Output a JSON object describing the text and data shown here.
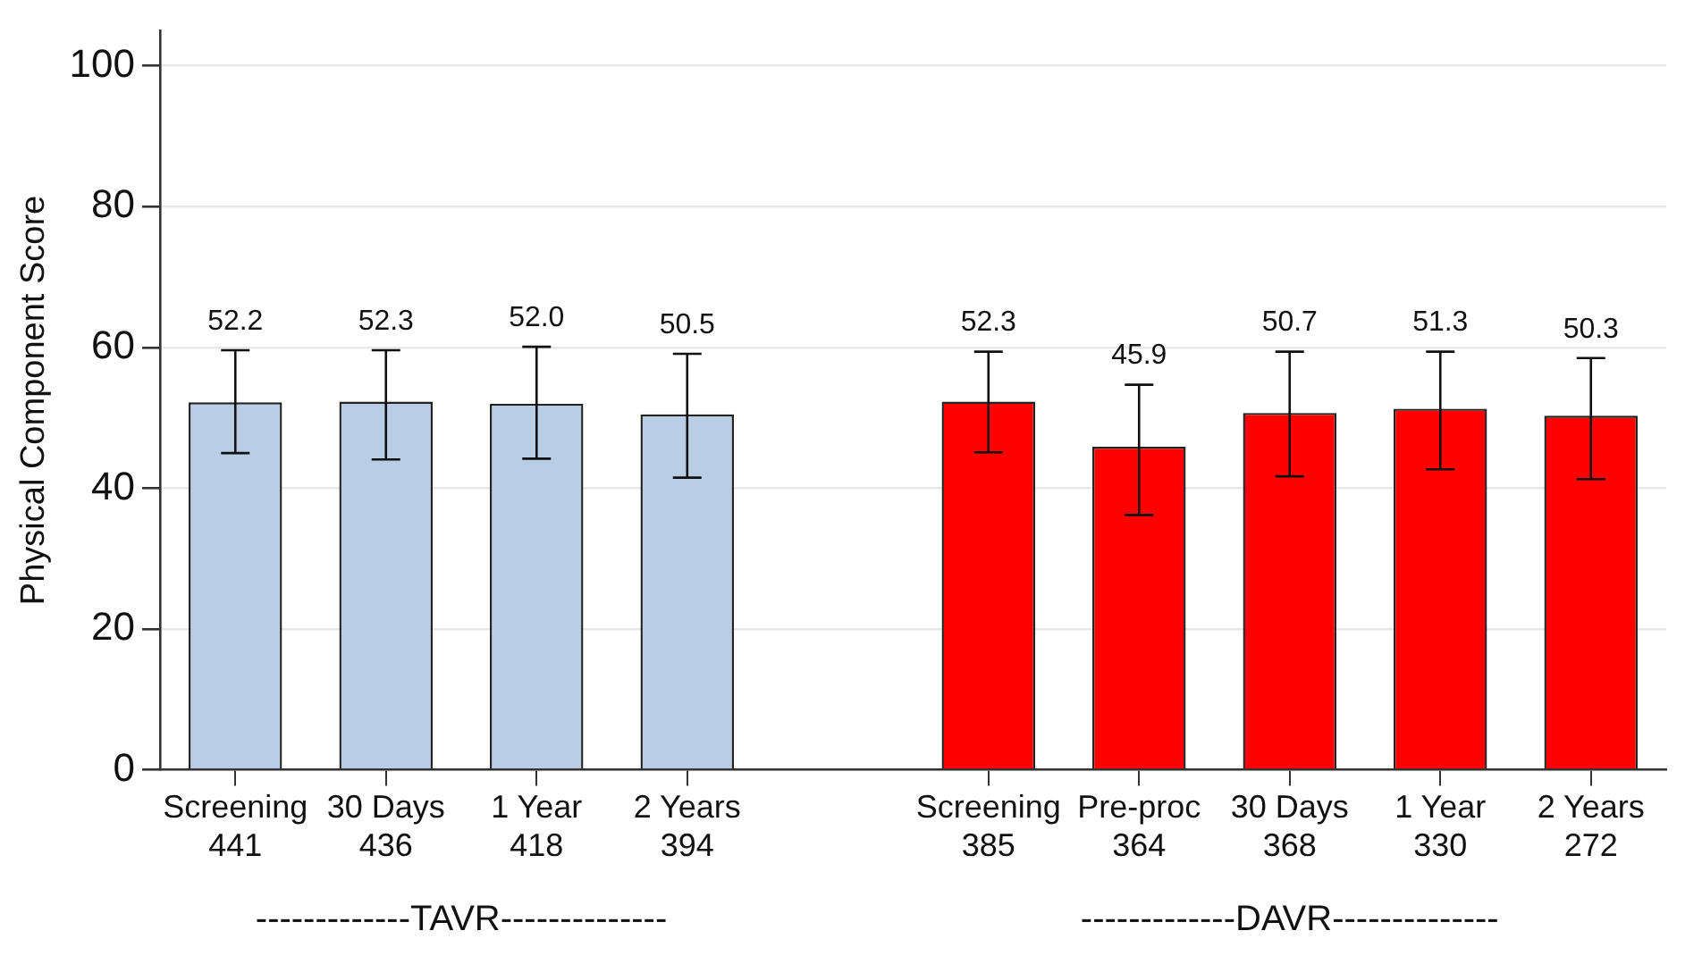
{
  "chart_data": {
    "type": "bar",
    "ylabel": "Physical Component Score",
    "categories": [
      "Screening\n441",
      "30 Days\n436",
      "1 Year\n418",
      "2 Years\n394",
      null,
      "Screening\n385",
      "Pre-proc\n364",
      "30 Days\n368",
      "1 Year\n330",
      "2 Years\n272"
    ],
    "series": [
      {
        "color": "#b9cde5",
        "values": [
          52.2,
          52.3,
          52.0,
          50.5,
          null,
          null,
          null,
          null,
          null,
          null
        ],
        "errors": [
          [
            45.0,
            59.6
          ],
          [
            44.1,
            59.6
          ],
          [
            44.2,
            60.1
          ],
          [
            41.5,
            59.1
          ],
          null,
          null,
          null,
          null,
          null,
          null
        ],
        "value_labels": [
          "52.2",
          "52.3",
          "52.0",
          "50.5",
          null,
          null,
          null,
          null,
          null,
          null
        ]
      },
      {
        "color": "#ff0000",
        "values": [
          null,
          null,
          null,
          null,
          null,
          52.3,
          45.9,
          50.7,
          51.3,
          50.3
        ],
        "errors": [
          null,
          null,
          null,
          null,
          null,
          [
            45.1,
            59.4
          ],
          [
            36.2,
            54.7
          ],
          [
            41.7,
            59.4
          ],
          [
            42.7,
            59.4
          ],
          [
            41.3,
            58.5
          ]
        ],
        "value_labels": [
          null,
          null,
          null,
          null,
          null,
          "52.3",
          "45.9",
          "50.7",
          "51.3",
          "50.3"
        ]
      }
    ],
    "ylim": [
      0,
      105
    ],
    "yticks": [
      0,
      20,
      40,
      60,
      80,
      100
    ],
    "grid": "y",
    "legend": false,
    "annotations": [
      "-------------TAVR--------------",
      "-------------DAVR--------------"
    ]
  }
}
